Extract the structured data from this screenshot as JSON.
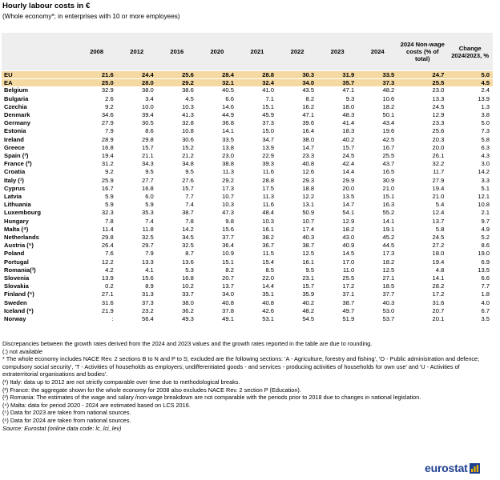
{
  "title": "Hourly labour costs in €",
  "subtitle": "(Whole economy*; in enterprises with 10 or more employees)",
  "chart_data": {
    "type": "table",
    "columns": [
      "",
      "2008",
      "2012",
      "2016",
      "2020",
      "2021",
      "2022",
      "2023",
      "2024",
      "2024 Non-wage costs (% of total)",
      "Change 2024/2023, %"
    ],
    "aggregates": [
      {
        "label": "EU",
        "values": [
          "21.6",
          "24.4",
          "25.6",
          "28.4",
          "28.8",
          "30.3",
          "31.9",
          "33.5",
          "24.7",
          "5.0"
        ]
      },
      {
        "label": "EA",
        "values": [
          "25.0",
          "28.0",
          "29.2",
          "32.1",
          "32.4",
          "34.0",
          "35.7",
          "37.3",
          "25.5",
          "4.5"
        ]
      }
    ],
    "countries": [
      {
        "label": "Belgium",
        "values": [
          "32.9",
          "38.0",
          "38.6",
          "40.5",
          "41.0",
          "43.5",
          "47.1",
          "48.2",
          "23.0",
          "2.4"
        ]
      },
      {
        "label": "Bulgaria",
        "values": [
          "2.6",
          "3.4",
          "4.5",
          "6.6",
          "7.1",
          "8.2",
          "9.3",
          "10.6",
          "13.3",
          "13.9"
        ]
      },
      {
        "label": "Czechia",
        "values": [
          "9.2",
          "10.0",
          "10.3",
          "14.6",
          "15.1",
          "16.2",
          "18.0",
          "18.2",
          "24.5",
          "1.3"
        ]
      },
      {
        "label": "Denmark",
        "values": [
          "34.6",
          "39.4",
          "41.3",
          "44.9",
          "45.9",
          "47.1",
          "48.3",
          "50.1",
          "12.9",
          "3.8"
        ]
      },
      {
        "label": "Germany",
        "values": [
          "27.9",
          "30.5",
          "32.8",
          "36.8",
          "37.3",
          "39.6",
          "41.4",
          "43.4",
          "23.3",
          "5.0"
        ]
      },
      {
        "label": "Estonia",
        "values": [
          "7.9",
          "8.6",
          "10.8",
          "14.1",
          "15.0",
          "16.4",
          "18.3",
          "19.6",
          "25.6",
          "7.3"
        ]
      },
      {
        "label": "Ireland",
        "values": [
          "28.9",
          "29.8",
          "30.6",
          "33.5",
          "34.7",
          "38.0",
          "40.2",
          "42.5",
          "20.3",
          "5.8"
        ]
      },
      {
        "label": "Greece",
        "values": [
          "16.8",
          "15.7",
          "15.2",
          "13.8",
          "13.9",
          "14.7",
          "15.7",
          "16.7",
          "20.0",
          "6.3"
        ]
      },
      {
        "label": "Spain (³)",
        "values": [
          "19.4",
          "21.1",
          "21.2",
          "23.0",
          "22.9",
          "23.3",
          "24.5",
          "25.5",
          "26.1",
          "4.3"
        ]
      },
      {
        "label": "France (²)",
        "values": [
          "31.2",
          "34.3",
          "34.8",
          "38.8",
          "39.3",
          "40.8",
          "42.4",
          "43.7",
          "32.2",
          "3.0"
        ]
      },
      {
        "label": "Croatia",
        "values": [
          "9.2",
          "9.5",
          "9.5",
          "11.3",
          "11.6",
          "12.6",
          "14.4",
          "16.5",
          "11.7",
          "14.2"
        ]
      },
      {
        "label": "Italy (¹)",
        "values": [
          "25.9",
          "27.7",
          "27.6",
          "29.2",
          "28.8",
          "29.3",
          "29.9",
          "30.9",
          "27.9",
          "3.3"
        ]
      },
      {
        "label": "Cyprus",
        "values": [
          "16.7",
          "16.8",
          "15.7",
          "17.3",
          "17.5",
          "18.8",
          "20.0",
          "21.0",
          "19.4",
          "5.1"
        ]
      },
      {
        "label": "Latvia",
        "values": [
          "5.9",
          "6.0",
          "7.7",
          "10.7",
          "11.3",
          "12.2",
          "13.5",
          "15.1",
          "21.0",
          "12.1"
        ]
      },
      {
        "label": "Lithuania",
        "values": [
          "5.9",
          "5.9",
          "7.4",
          "10.3",
          "11.6",
          "13.1",
          "14.7",
          "16.3",
          "5.4",
          "10.8"
        ]
      },
      {
        "label": "Luxembourg",
        "values": [
          "32.3",
          "35.3",
          "38.7",
          "47.3",
          "48.4",
          "50.9",
          "54.1",
          "55.2",
          "12.4",
          "2.1"
        ]
      },
      {
        "label": "Hungary",
        "values": [
          "7.8",
          "7.4",
          "7.8",
          "9.8",
          "10.3",
          "10.7",
          "12.9",
          "14.1",
          "13.7",
          "9.7"
        ]
      },
      {
        "label": "Malta (⁴)",
        "values": [
          "11.4",
          "11.8",
          "14.2",
          "15.6",
          "16.1",
          "17.4",
          "18.2",
          "19.1",
          "5.8",
          "4.9"
        ]
      },
      {
        "label": "Netherlands",
        "values": [
          "29.8",
          "32.5",
          "34.5",
          "37.7",
          "38.2",
          "40.3",
          "43.0",
          "45.2",
          "24.5",
          "5.2"
        ]
      },
      {
        "label": "Austria (⁵)",
        "values": [
          "26.4",
          "29.7",
          "32.5",
          "36.4",
          "36.7",
          "38.7",
          "40.9",
          "44.5",
          "27.2",
          "8.6"
        ]
      },
      {
        "label": "Poland",
        "values": [
          "7.6",
          "7.9",
          "8.7",
          "10.9",
          "11.5",
          "12.5",
          "14.5",
          "17.3",
          "18.0",
          "19.0"
        ]
      },
      {
        "label": "Portugal",
        "values": [
          "12.2",
          "13.3",
          "13.6",
          "15.1",
          "15.4",
          "16.1",
          "17.0",
          "18.2",
          "19.4",
          "6.9"
        ]
      },
      {
        "label": "Romania(³)",
        "values": [
          "4.2",
          "4.1",
          "5.3",
          "8.2",
          "8.5",
          "9.5",
          "11.0",
          "12.5",
          "4.8",
          "13.5"
        ]
      },
      {
        "label": "Slovenia",
        "values": [
          "13.9",
          "15.6",
          "16.8",
          "20.7",
          "22.0",
          "23.1",
          "25.5",
          "27.1",
          "14.1",
          "6.6"
        ]
      },
      {
        "label": "Slovakia",
        "values": [
          "0.2",
          "8.9",
          "10.2",
          "13.7",
          "14.4",
          "15.7",
          "17.2",
          "18.5",
          "28.2",
          "7.7"
        ]
      },
      {
        "label": "Finland (⁵)",
        "values": [
          "27.1",
          "31.3",
          "33.7",
          "34.0",
          "35.1",
          "35.9",
          "37.1",
          "37.7",
          "17.2",
          "1.8"
        ]
      },
      {
        "label": "Sweden",
        "values": [
          "31.6",
          "37.3",
          "38.0",
          "40.8",
          "40.8",
          "40.2",
          "38.7",
          "40.3",
          "31.6",
          "4.0"
        ]
      }
    ],
    "others": [
      {
        "label": "Iceland (⁶)",
        "values": [
          "21.9",
          "23.2",
          "36.2",
          "37.8",
          "42.6",
          "48.2",
          "49.7",
          "53.0",
          "20.7",
          "6.7"
        ]
      },
      {
        "label": "Norway",
        "values": [
          ":",
          "56.4",
          "49.3",
          "49.1",
          "53.1",
          "54.5",
          "51.9",
          "53.7",
          "20.1",
          "3.5"
        ]
      }
    ]
  },
  "notes": [
    "Discrepancies between the growth rates derived from the 2024 and 2023 values and the growth rates reported in the table are due to rounding.",
    "(:) not available",
    "* The whole economy includes NACE Rev. 2 sections B to N and P to S; excluded are the following sections: 'A - Agriculture, forestry and fishing', 'O - Public administration and defence; compulsory social security', 'T - Activities of households as employers; undifferentiated goods - and services - producing activities of households for own use' and 'U - Activities of extraterritorial organisations and bodies'.",
    "(¹) Italy: data up to 2012 are not strictly comparable over time due to methodological breaks.",
    "(²) France: the aggregate shown for the whole economy for 2008 also excludes NACE Rev. 2 section P (Education).",
    "(³) Romania: The estimates of the wage and salary /non-wage breakdown are not comparable with the periods prior to 2018 due to changes in national legislation.",
    "(⁴) Malta: data for period 2020 - 2024 are estimated based on LCS 2016.",
    "(⁵) Data for 2023 are taken from national sources.",
    "(⁶) Data for 2024 are taken from national sources."
  ],
  "source": "Source: Eurostat (online data code: lc_lci_lev)",
  "logo_text": "eurostat",
  "colors": {
    "header_bg": "#eeeeee",
    "aggregate_bg": "#f5d9a3",
    "logo": "#1f3f8f",
    "logo_mark": "#f2b400"
  }
}
